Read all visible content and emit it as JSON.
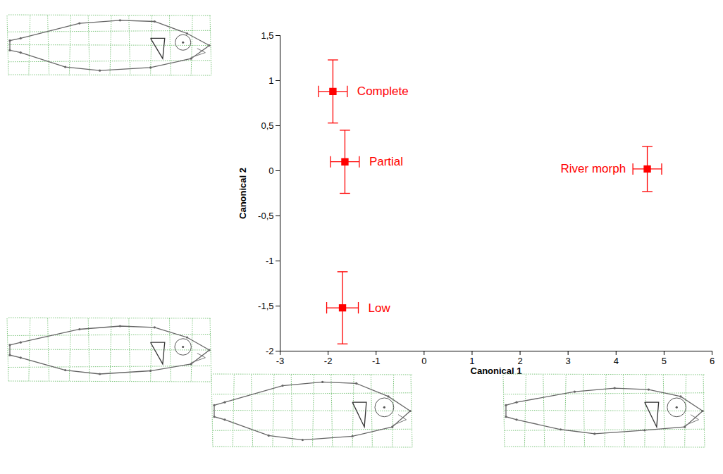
{
  "chart_data": {
    "type": "scatter",
    "xlabel": "Canonical 1",
    "ylabel": "Canonical 2",
    "categories": [
      "Complete",
      "Partial",
      "Low",
      "River morph"
    ],
    "x": [
      -1.9,
      -1.65,
      -1.7,
      4.65
    ],
    "values": [
      0.88,
      0.1,
      -1.52,
      0.02
    ],
    "x_error": [
      0.3,
      0.3,
      0.33,
      0.3
    ],
    "y_error": [
      0.35,
      0.35,
      0.4,
      0.25
    ],
    "color": "#ff0000",
    "marker": "square",
    "xlim": [
      -3,
      6
    ],
    "xticks": [
      -3,
      -2,
      -1,
      0,
      1,
      2,
      3,
      4,
      5,
      6
    ],
    "ylim": [
      -2,
      1.5
    ],
    "yticks": [
      -2,
      {
        "value": -1.5,
        "label": "-1,5"
      },
      -1,
      {
        "value": -0.5,
        "label": "-0,5"
      },
      0,
      {
        "value": 0.5,
        "label": "0,5"
      },
      1,
      {
        "value": 1.5,
        "label": "1,5"
      }
    ],
    "grid": false
  }
}
